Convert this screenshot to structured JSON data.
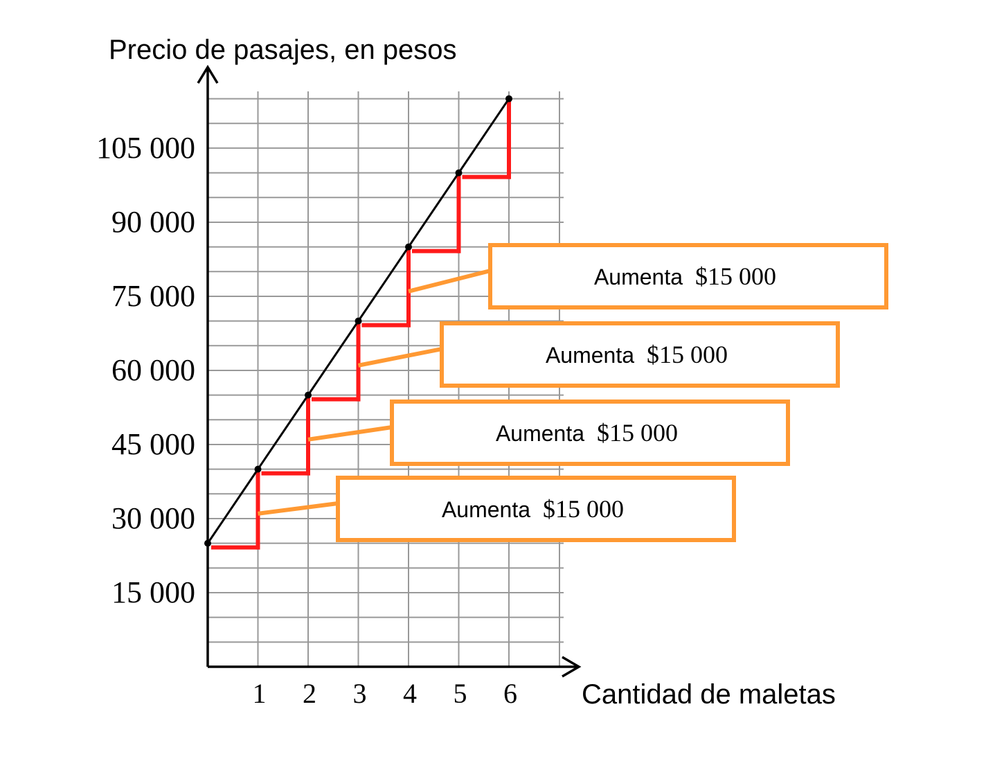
{
  "chart_data": {
    "type": "line",
    "ylabel": "Precio de pasajes, en pesos",
    "xlabel": "Cantidad de maletas",
    "x_ticks": [
      1,
      2,
      3,
      4,
      5,
      6
    ],
    "y_ticks": [
      15000,
      30000,
      45000,
      60000,
      75000,
      90000,
      105000
    ],
    "y_tick_labels": [
      "15 000",
      "30 000",
      "45 000",
      "60 000",
      "75 000",
      "90 000",
      "105 000"
    ],
    "xlim": [
      0,
      6.9
    ],
    "ylim": [
      0,
      115000
    ],
    "grid": true,
    "series": [
      {
        "x": [
          0,
          1,
          2,
          3,
          4,
          5,
          6
        ],
        "y": [
          25000,
          40000,
          55000,
          70000,
          85000,
          100000,
          115000
        ],
        "color": "#000000"
      }
    ],
    "steps": {
      "color": "#ff1a1a",
      "x": [
        0,
        1,
        2,
        3,
        4,
        5,
        6
      ],
      "y": [
        25000,
        40000,
        55000,
        70000,
        85000,
        100000,
        115000
      ]
    },
    "annotations": [
      {
        "label": "Aumenta",
        "value": "$15 000",
        "x": 1,
        "y": 31000
      },
      {
        "label": "Aumenta",
        "value": "$15 000",
        "x": 2,
        "y": 46000
      },
      {
        "label": "Aumenta",
        "value": "$15 000",
        "x": 3,
        "y": 61000
      },
      {
        "label": "Aumenta",
        "value": "$15 000",
        "x": 4,
        "y": 76000
      }
    ],
    "annotation_color": "#ff9933"
  }
}
